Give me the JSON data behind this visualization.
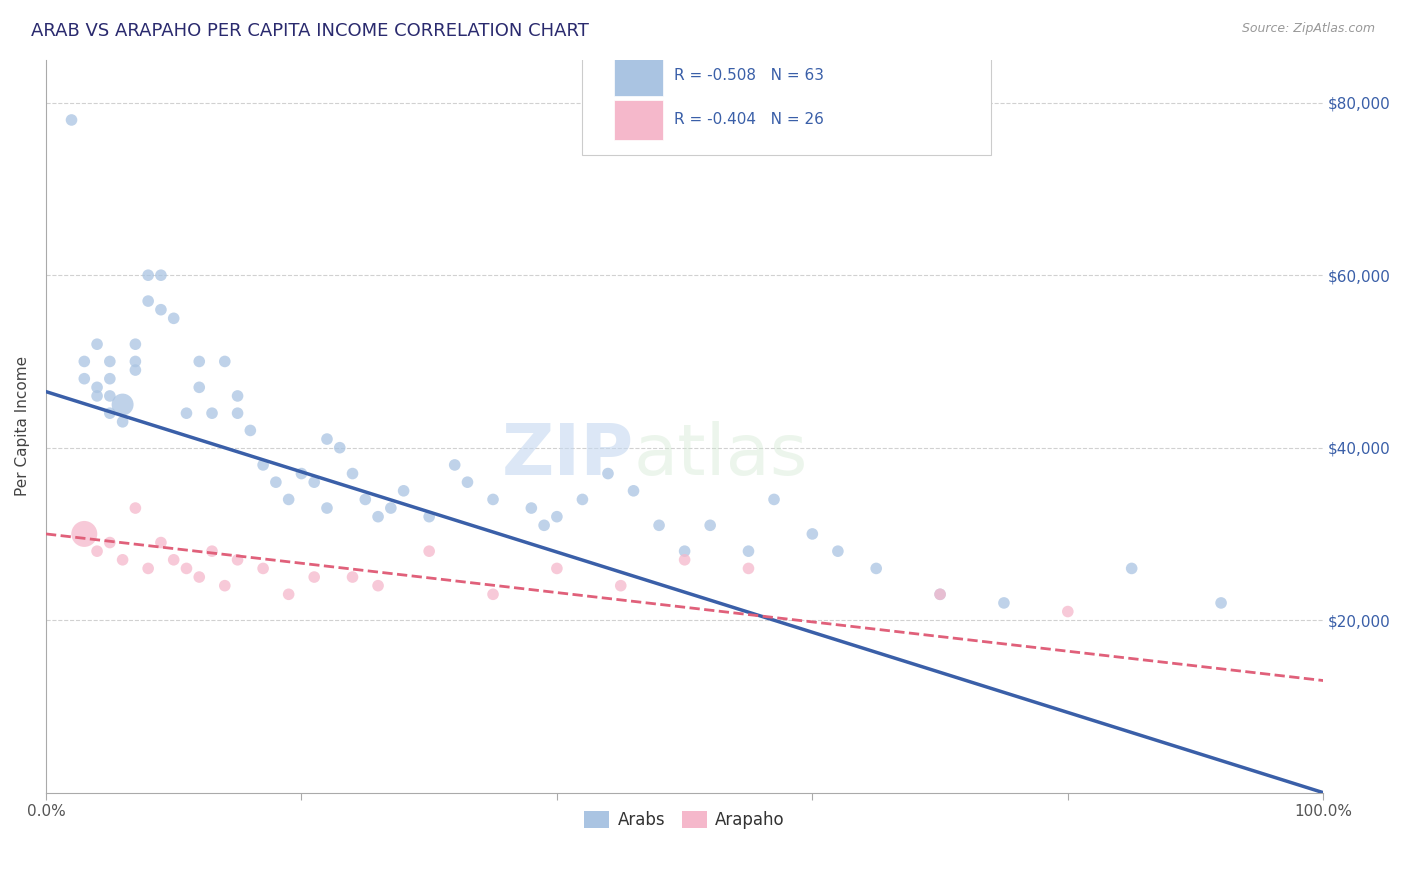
{
  "title": "ARAB VS ARAPAHO PER CAPITA INCOME CORRELATION CHART",
  "source": "Source: ZipAtlas.com",
  "ylabel": "Per Capita Income",
  "xlim": [
    0,
    1.0
  ],
  "ylim": [
    0,
    85000
  ],
  "xtick_positions": [
    0.0,
    0.2,
    0.4,
    0.6,
    0.8,
    1.0
  ],
  "xticklabels": [
    "0.0%",
    "",
    "",
    "",
    "",
    "100.0%"
  ],
  "ytick_positions": [
    20000,
    40000,
    60000,
    80000
  ],
  "ytick_labels": [
    "$20,000",
    "$40,000",
    "$60,000",
    "$80,000"
  ],
  "background_color": "#ffffff",
  "grid_color": "#cccccc",
  "watermark_zip": "ZIP",
  "watermark_atlas": "atlas",
  "legend_label1": "R = -0.508   N = 63",
  "legend_label2": "R = -0.404   N = 26",
  "legend_entry1": "Arabs",
  "legend_entry2": "Arapaho",
  "arab_color": "#aac4e2",
  "arab_line_color": "#3a5fa8",
  "arapaho_color": "#f5b8cb",
  "arapaho_line_color": "#e0607a",
  "arab_x": [
    0.02,
    0.03,
    0.03,
    0.04,
    0.04,
    0.04,
    0.05,
    0.05,
    0.05,
    0.05,
    0.06,
    0.06,
    0.07,
    0.07,
    0.07,
    0.08,
    0.08,
    0.09,
    0.09,
    0.1,
    0.11,
    0.12,
    0.12,
    0.13,
    0.14,
    0.15,
    0.15,
    0.16,
    0.17,
    0.18,
    0.19,
    0.2,
    0.21,
    0.22,
    0.22,
    0.23,
    0.24,
    0.25,
    0.26,
    0.27,
    0.28,
    0.3,
    0.32,
    0.33,
    0.35,
    0.38,
    0.39,
    0.4,
    0.42,
    0.44,
    0.46,
    0.48,
    0.5,
    0.52,
    0.55,
    0.57,
    0.6,
    0.62,
    0.65,
    0.7,
    0.75,
    0.85,
    0.92
  ],
  "arab_y": [
    78000,
    50000,
    48000,
    46000,
    47000,
    52000,
    44000,
    46000,
    48000,
    50000,
    43000,
    45000,
    49000,
    50000,
    52000,
    60000,
    57000,
    60000,
    56000,
    55000,
    44000,
    50000,
    47000,
    44000,
    50000,
    46000,
    44000,
    42000,
    38000,
    36000,
    34000,
    37000,
    36000,
    33000,
    41000,
    40000,
    37000,
    34000,
    32000,
    33000,
    35000,
    32000,
    38000,
    36000,
    34000,
    33000,
    31000,
    32000,
    34000,
    37000,
    35000,
    31000,
    28000,
    31000,
    28000,
    34000,
    30000,
    28000,
    26000,
    23000,
    22000,
    26000,
    22000
  ],
  "arab_sizes": [
    70,
    70,
    70,
    70,
    70,
    70,
    70,
    70,
    70,
    70,
    70,
    250,
    70,
    70,
    70,
    70,
    70,
    70,
    70,
    70,
    70,
    70,
    70,
    70,
    70,
    70,
    70,
    70,
    70,
    70,
    70,
    70,
    70,
    70,
    70,
    70,
    70,
    70,
    70,
    70,
    70,
    70,
    70,
    70,
    70,
    70,
    70,
    70,
    70,
    70,
    70,
    70,
    70,
    70,
    70,
    70,
    70,
    70,
    70,
    70,
    70,
    70,
    70
  ],
  "arapaho_x": [
    0.03,
    0.04,
    0.05,
    0.06,
    0.07,
    0.08,
    0.09,
    0.1,
    0.11,
    0.12,
    0.13,
    0.14,
    0.15,
    0.17,
    0.19,
    0.21,
    0.24,
    0.26,
    0.3,
    0.35,
    0.4,
    0.45,
    0.5,
    0.55,
    0.7,
    0.8
  ],
  "arapaho_y": [
    30000,
    28000,
    29000,
    27000,
    33000,
    26000,
    29000,
    27000,
    26000,
    25000,
    28000,
    24000,
    27000,
    26000,
    23000,
    25000,
    25000,
    24000,
    28000,
    23000,
    26000,
    24000,
    27000,
    26000,
    23000,
    21000
  ],
  "arapaho_sizes": [
    350,
    70,
    70,
    70,
    70,
    70,
    70,
    70,
    70,
    70,
    70,
    70,
    70,
    70,
    70,
    70,
    70,
    70,
    70,
    70,
    70,
    70,
    70,
    70,
    70,
    70
  ],
  "arab_trend_x0": 0.0,
  "arab_trend_y0": 46500,
  "arab_trend_x1": 1.0,
  "arab_trend_y1": 0,
  "arapaho_trend_x0": 0.0,
  "arapaho_trend_y0": 30000,
  "arapaho_trend_x1": 1.0,
  "arapaho_trend_y1": 13000
}
